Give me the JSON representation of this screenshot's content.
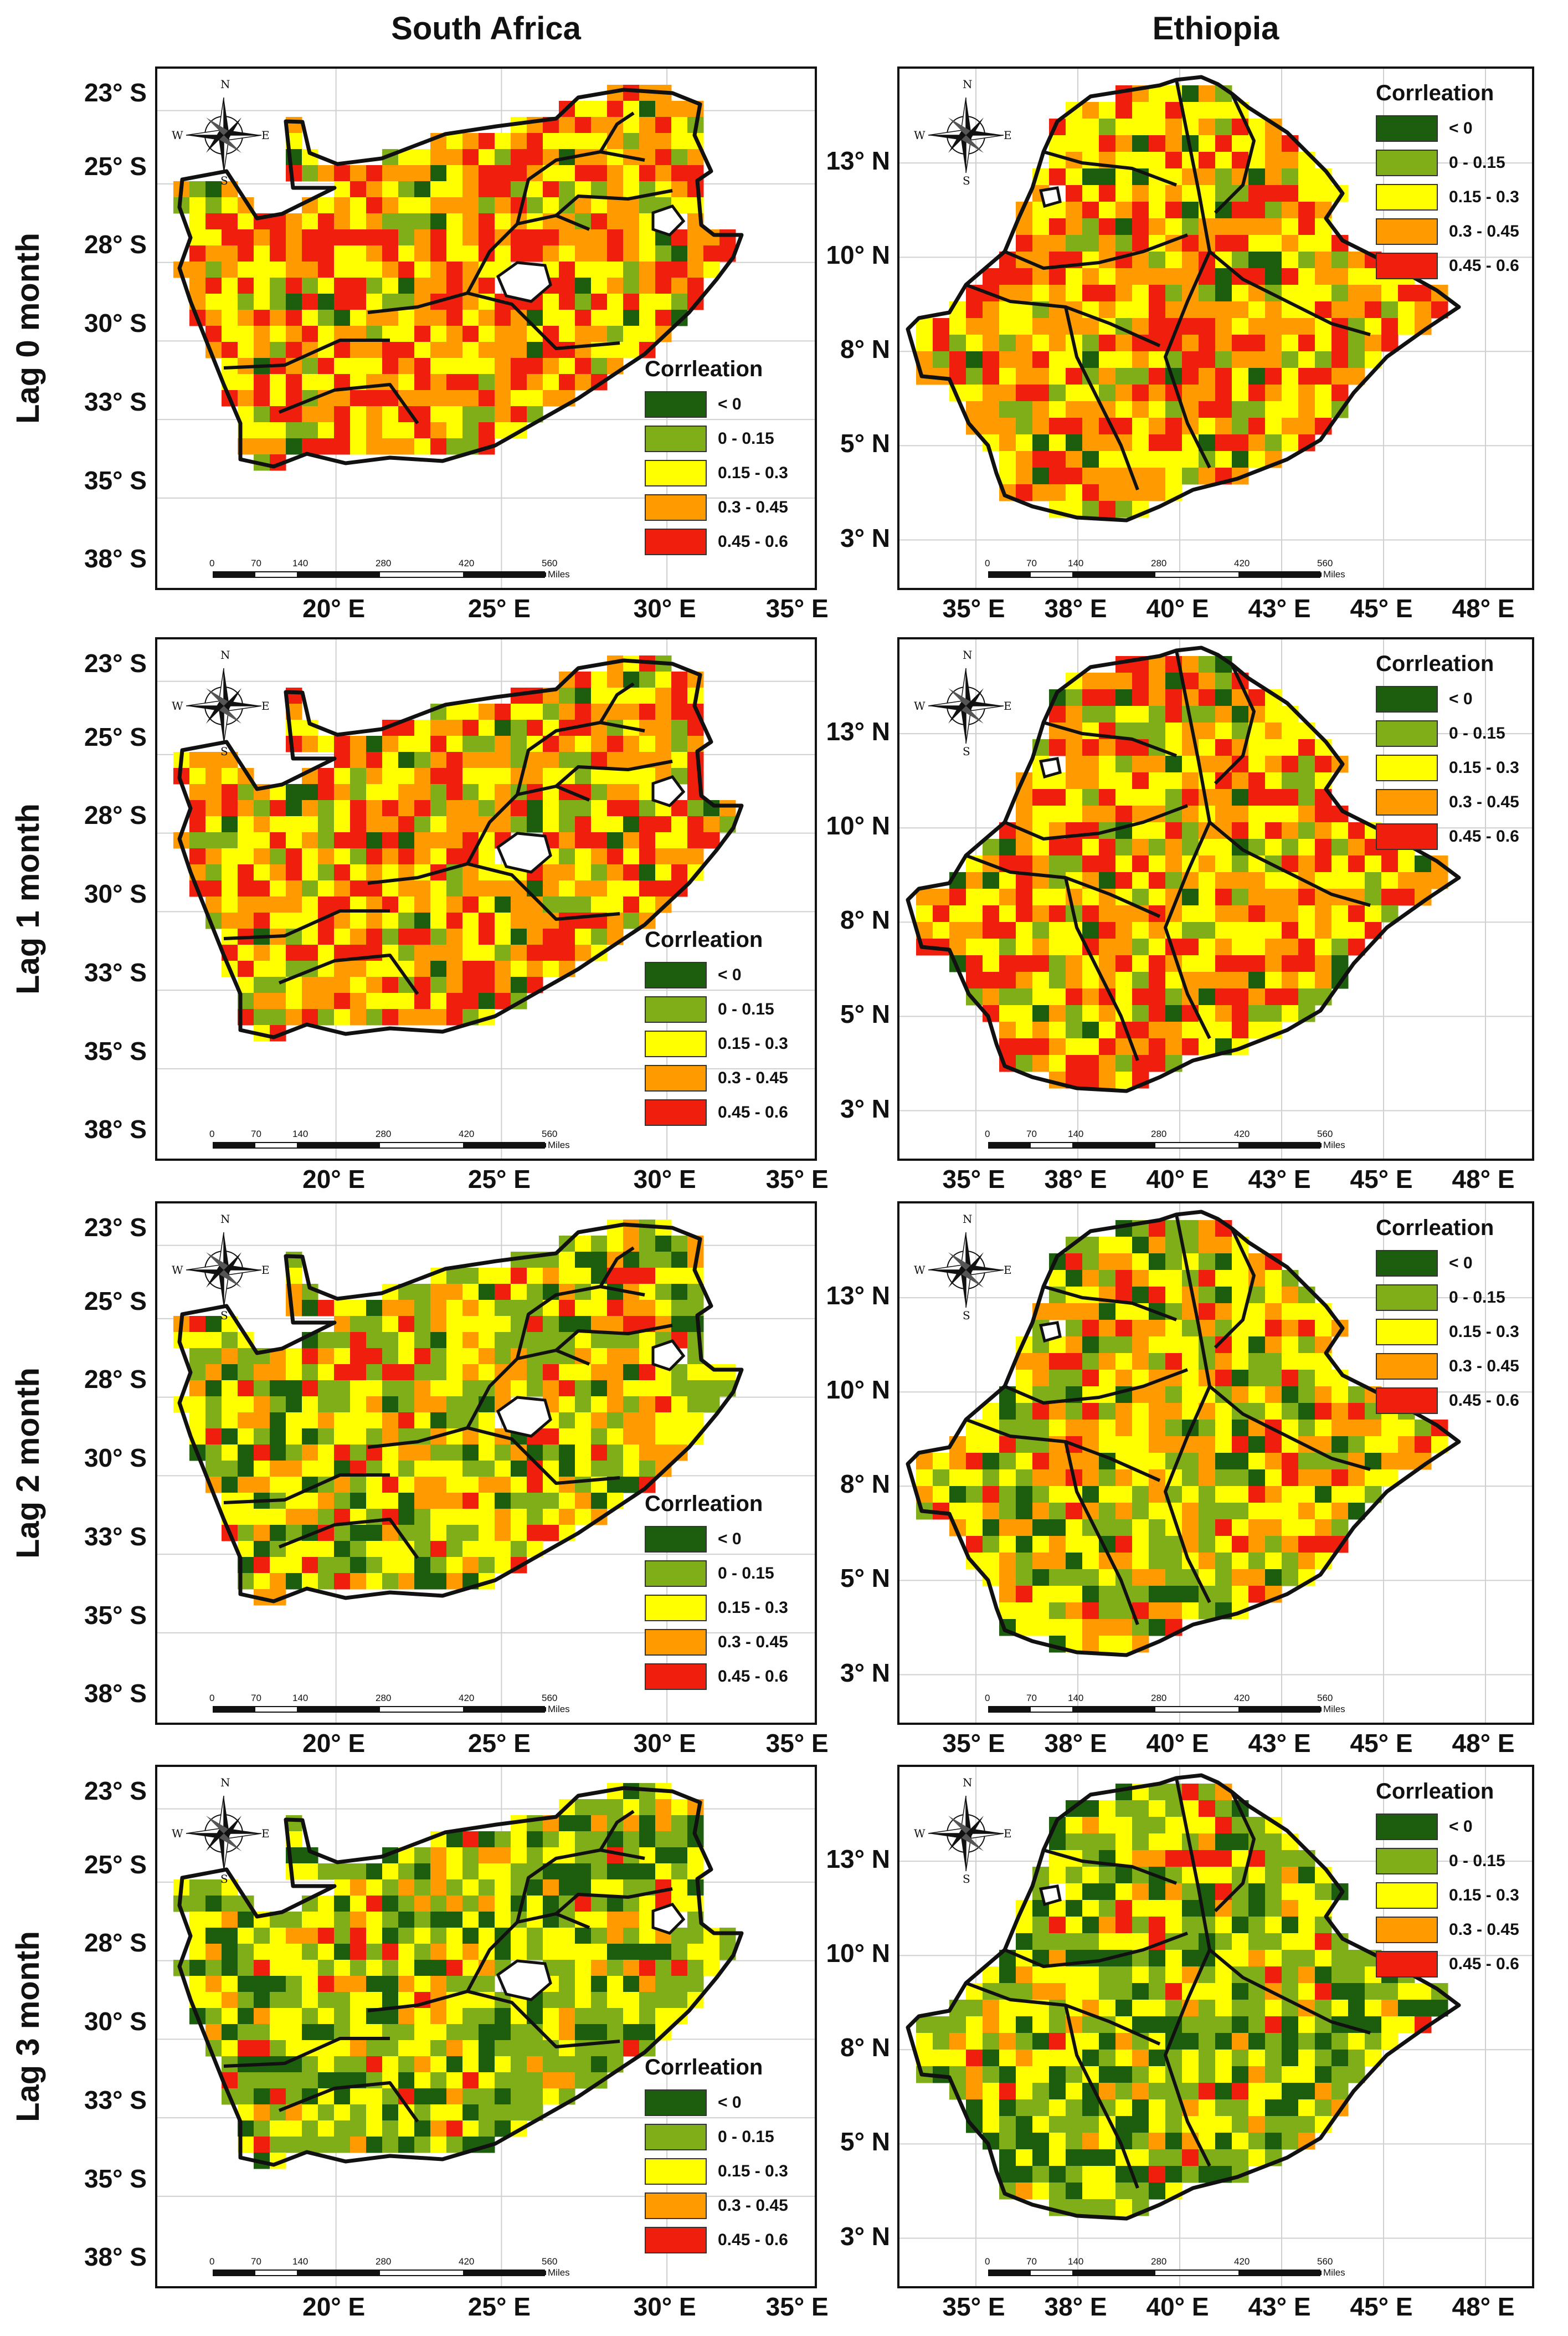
{
  "columns": [
    {
      "title": "South Africa"
    },
    {
      "title": "Ethiopia"
    }
  ],
  "rows": [
    {
      "label": "Lag 0 month",
      "level": 0
    },
    {
      "label": "Lag 1 month",
      "level": 1
    },
    {
      "label": "Lag 2 month",
      "level": 2
    },
    {
      "label": "Lag 3 month",
      "level": 3
    }
  ],
  "legend": {
    "title": "Corrleation",
    "classes": [
      {
        "label": "< 0",
        "color": "#1d5e0e"
      },
      {
        "label": "0 - 0.15",
        "color": "#7fae18"
      },
      {
        "label": "0.15 - 0.3",
        "color": "#ffff00"
      },
      {
        "label": "0.3 - 0.45",
        "color": "#ff9b00"
      },
      {
        "label": "0.45 - 0.6",
        "color": "#f01e0c"
      }
    ]
  },
  "axes": {
    "south_africa": {
      "y_ticks": [
        "23° S",
        "25° S",
        "28° S",
        "30° S",
        "33° S",
        "35° S",
        "38° S"
      ],
      "x_ticks": [
        "20° E",
        "25° E",
        "30° E",
        "35° E"
      ]
    },
    "ethiopia": {
      "y_ticks": [
        "13° N",
        "10° N",
        "8° N",
        "5° N",
        "3° N"
      ],
      "x_ticks": [
        "35° E",
        "38° E",
        "40° E",
        "43° E",
        "45° E",
        "48° E"
      ]
    }
  },
  "scale_bar": {
    "ticks": [
      "0",
      "70",
      "140",
      "280",
      "420",
      "560"
    ],
    "unit": "Miles"
  },
  "north_arrow": {
    "n": "N",
    "s": "S",
    "e": "E",
    "w": "W"
  },
  "colors": {
    "outline": "#111111",
    "frame": "#111111",
    "grid": "#d0d0d0"
  }
}
